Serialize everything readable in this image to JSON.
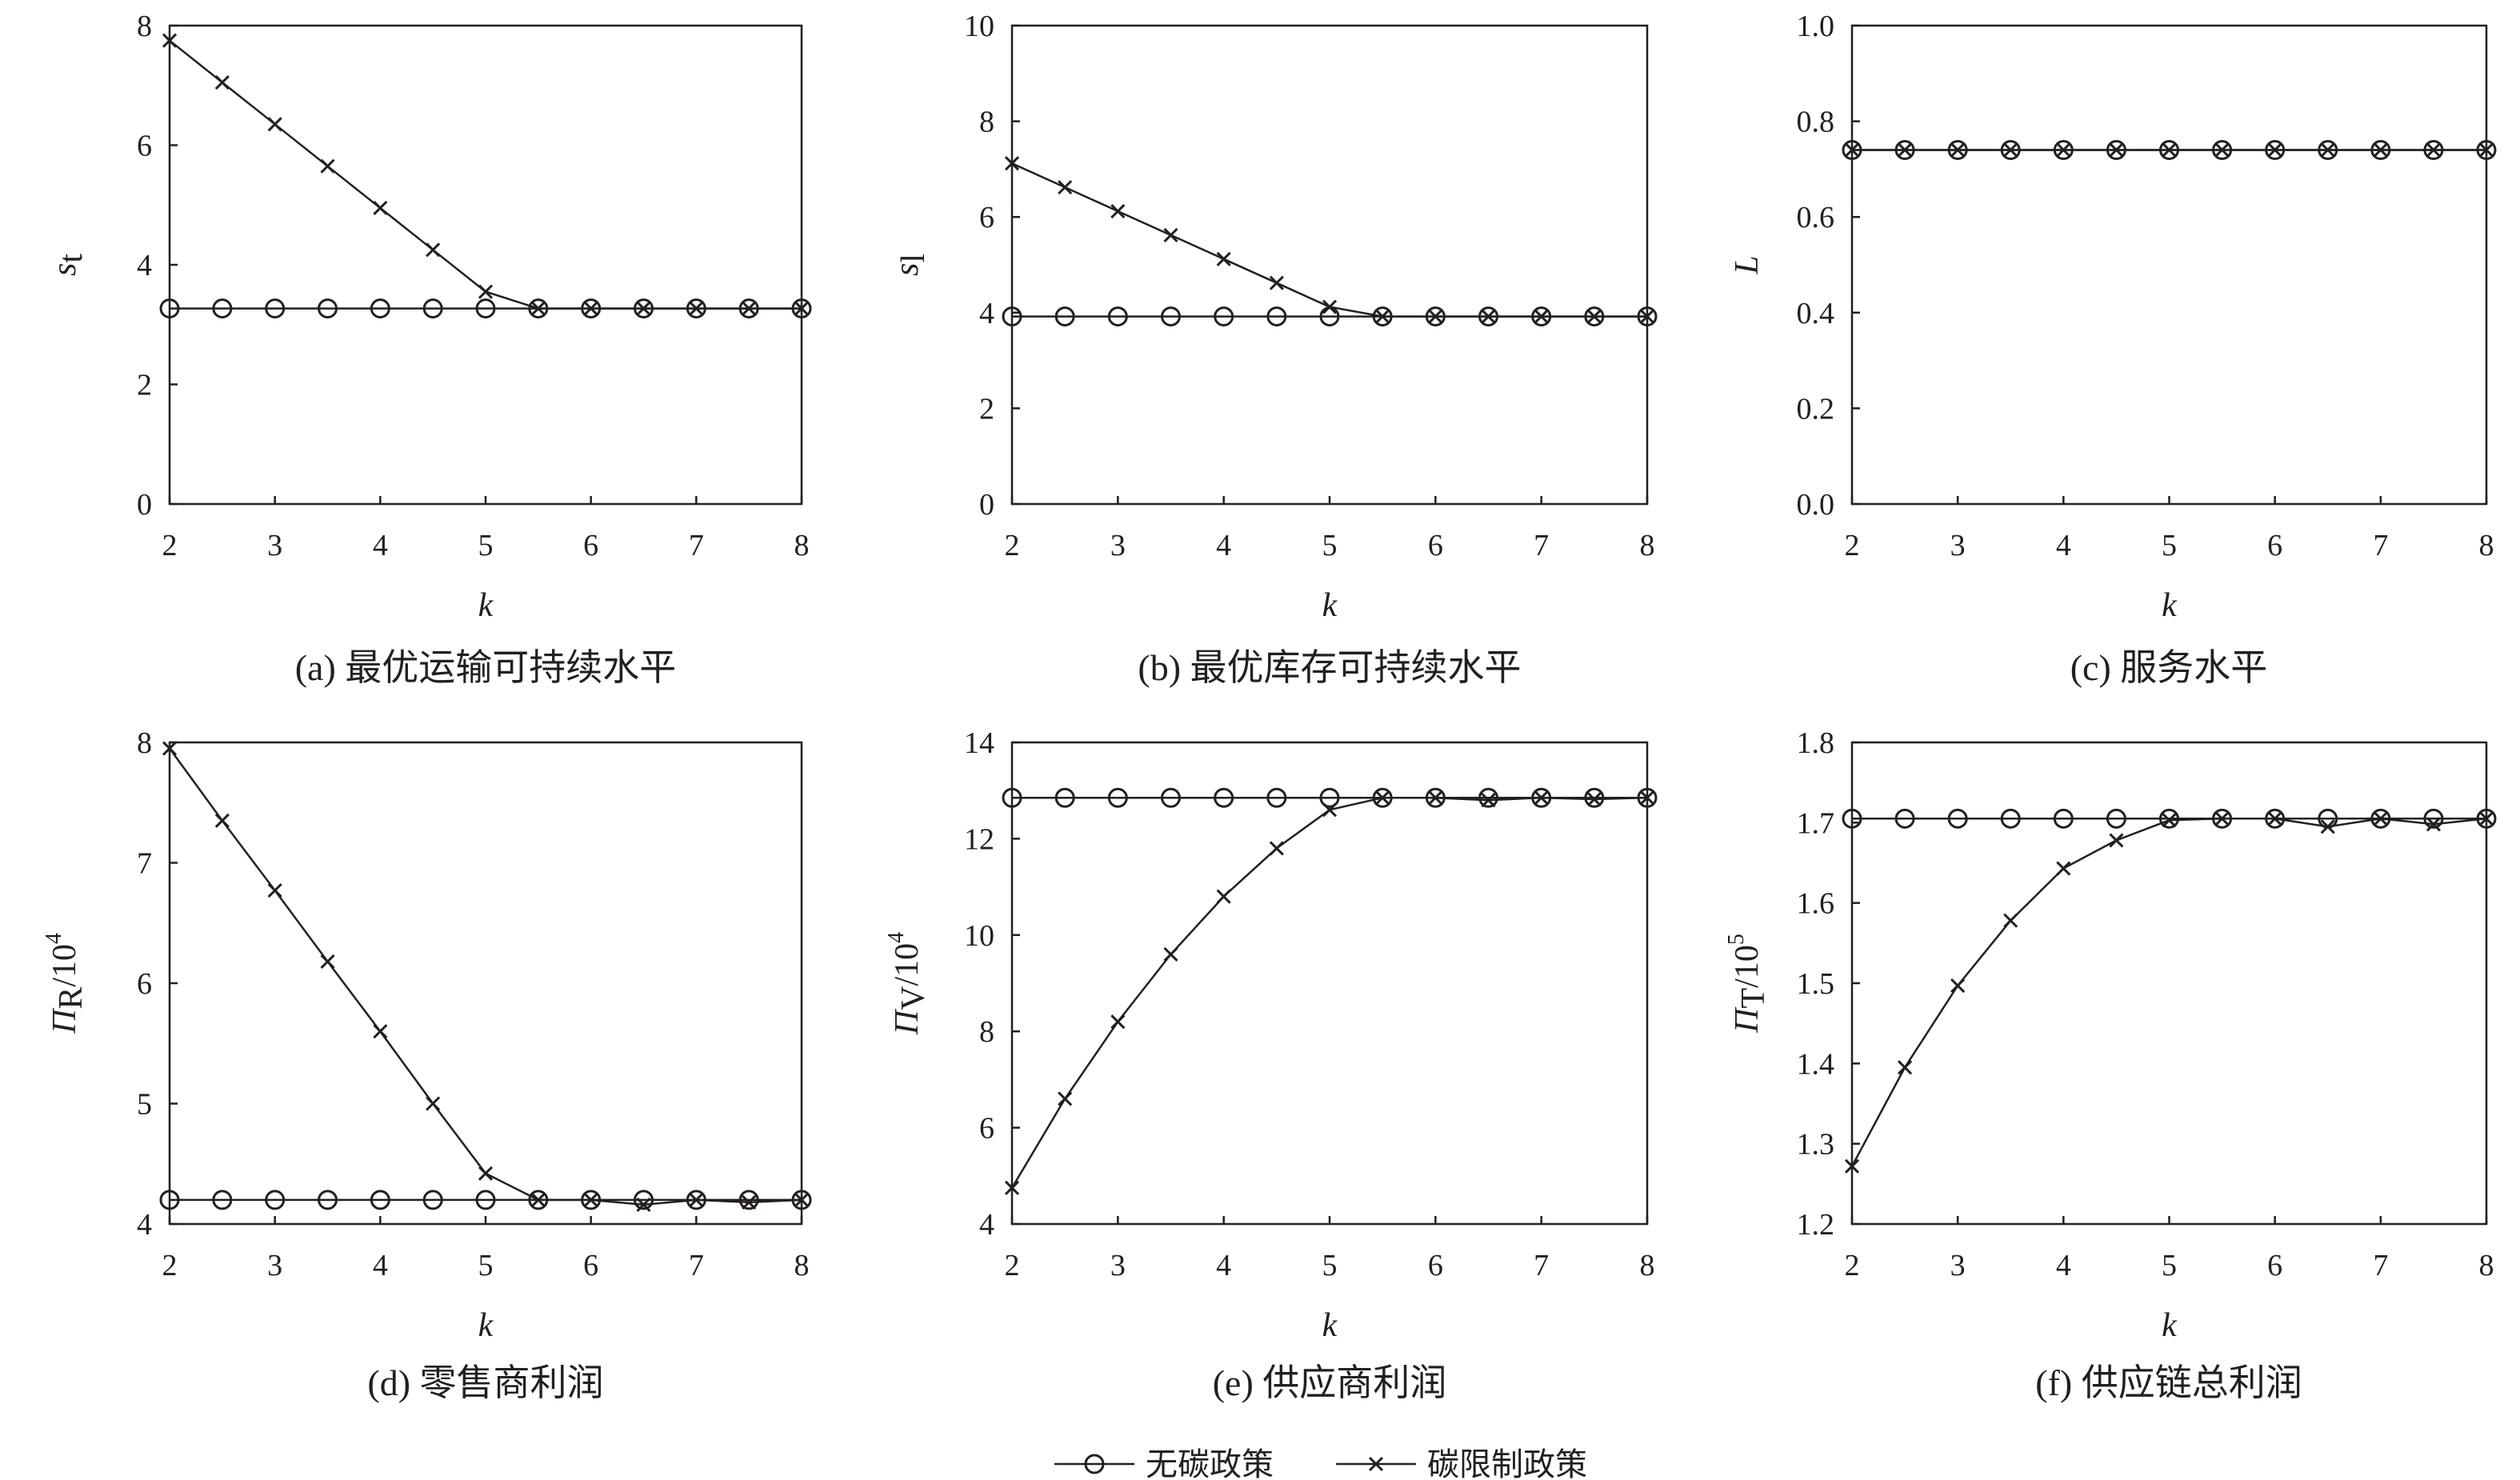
{
  "chart_data": [
    {
      "type": "line",
      "caption": "(a) 最优运输可持续水平",
      "xlabel": "k",
      "ylabel": {
        "main": "s",
        "sub": "t",
        "suffix": ""
      },
      "xlim": [
        2,
        8
      ],
      "ylim": [
        0,
        8
      ],
      "xticks": [
        2,
        3,
        4,
        5,
        6,
        7,
        8
      ],
      "yticks": [
        0,
        2,
        4,
        6,
        8
      ],
      "ytick_labels": [
        "0",
        "2",
        "4",
        "6",
        "8"
      ],
      "x": [
        2,
        2.5,
        3,
        3.5,
        4,
        4.5,
        5,
        5.5,
        6,
        6.5,
        7,
        7.5,
        8
      ],
      "series": [
        {
          "name": "无碳政策",
          "marker": "circle",
          "values": [
            3.27,
            3.27,
            3.27,
            3.27,
            3.27,
            3.27,
            3.27,
            3.27,
            3.27,
            3.27,
            3.27,
            3.27,
            3.27
          ]
        },
        {
          "name": "碳限制政策",
          "marker": "x",
          "values": [
            7.75,
            7.05,
            6.35,
            5.65,
            4.95,
            4.25,
            3.55,
            3.27,
            3.27,
            3.27,
            3.27,
            3.27,
            3.27
          ]
        }
      ]
    },
    {
      "type": "line",
      "caption": "(b) 最优库存可持续水平",
      "xlabel": "k",
      "ylabel": {
        "main": "s",
        "sub": "l",
        "suffix": ""
      },
      "xlim": [
        2,
        8
      ],
      "ylim": [
        0,
        10
      ],
      "xticks": [
        2,
        3,
        4,
        5,
        6,
        7,
        8
      ],
      "yticks": [
        0,
        2,
        4,
        6,
        8,
        10
      ],
      "ytick_labels": [
        "0",
        "2",
        "4",
        "6",
        "8",
        "10"
      ],
      "x": [
        2,
        2.5,
        3,
        3.5,
        4,
        4.5,
        5,
        5.5,
        6,
        6.5,
        7,
        7.5,
        8
      ],
      "series": [
        {
          "name": "无碳政策",
          "marker": "circle",
          "values": [
            3.92,
            3.92,
            3.92,
            3.92,
            3.92,
            3.92,
            3.92,
            3.92,
            3.92,
            3.92,
            3.92,
            3.92,
            3.92
          ]
        },
        {
          "name": "碳限制政策",
          "marker": "x",
          "values": [
            7.12,
            6.62,
            6.12,
            5.62,
            5.12,
            4.62,
            4.12,
            3.92,
            3.92,
            3.92,
            3.92,
            3.92,
            3.92
          ]
        }
      ]
    },
    {
      "type": "line",
      "caption": "(c) 服务水平",
      "xlabel": "k",
      "ylabel": {
        "main": "L",
        "sub": "",
        "suffix": ""
      },
      "xlim": [
        2,
        8
      ],
      "ylim": [
        0,
        1
      ],
      "xticks": [
        2,
        3,
        4,
        5,
        6,
        7,
        8
      ],
      "yticks": [
        0,
        0.2,
        0.4,
        0.6,
        0.8,
        1.0
      ],
      "ytick_labels": [
        "0.0",
        "0.2",
        "0.4",
        "0.6",
        "0.8",
        "1.0"
      ],
      "x": [
        2,
        2.5,
        3,
        3.5,
        4,
        4.5,
        5,
        5.5,
        6,
        6.5,
        7,
        7.5,
        8
      ],
      "series": [
        {
          "name": "无碳政策",
          "marker": "circle",
          "values": [
            0.74,
            0.74,
            0.74,
            0.74,
            0.74,
            0.74,
            0.74,
            0.74,
            0.74,
            0.74,
            0.74,
            0.74,
            0.74
          ]
        },
        {
          "name": "碳限制政策",
          "marker": "x",
          "values": [
            0.74,
            0.74,
            0.74,
            0.74,
            0.74,
            0.74,
            0.74,
            0.74,
            0.74,
            0.74,
            0.74,
            0.74,
            0.74
          ]
        }
      ]
    },
    {
      "type": "line",
      "caption": "(d) 零售商利润",
      "xlabel": "k",
      "ylabel": {
        "main": "Π",
        "sub": "R",
        "suffix": "/10",
        "sup": "4"
      },
      "xlim": [
        2,
        8
      ],
      "ylim": [
        4,
        8
      ],
      "xticks": [
        2,
        3,
        4,
        5,
        6,
        7,
        8
      ],
      "yticks": [
        4,
        5,
        6,
        7,
        8
      ],
      "ytick_labels": [
        "4",
        "5",
        "6",
        "7",
        "8"
      ],
      "x": [
        2,
        2.5,
        3,
        3.5,
        4,
        4.5,
        5,
        5.5,
        6,
        6.5,
        7,
        7.5,
        8
      ],
      "series": [
        {
          "name": "无碳政策",
          "marker": "circle",
          "values": [
            4.2,
            4.2,
            4.2,
            4.2,
            4.2,
            4.2,
            4.2,
            4.2,
            4.2,
            4.2,
            4.2,
            4.2,
            4.2
          ]
        },
        {
          "name": "碳限制政策",
          "marker": "x",
          "values": [
            7.95,
            7.35,
            6.77,
            6.18,
            5.6,
            5.0,
            4.42,
            4.2,
            4.2,
            4.16,
            4.2,
            4.18,
            4.2
          ]
        }
      ]
    },
    {
      "type": "line",
      "caption": "(e) 供应商利润",
      "xlabel": "k",
      "ylabel": {
        "main": "Π",
        "sub": "V",
        "suffix": "/10",
        "sup": "4"
      },
      "xlim": [
        2,
        8
      ],
      "ylim": [
        4,
        14
      ],
      "xticks": [
        2,
        3,
        4,
        5,
        6,
        7,
        8
      ],
      "yticks": [
        4,
        6,
        8,
        10,
        12,
        14
      ],
      "ytick_labels": [
        "4",
        "6",
        "8",
        "10",
        "12",
        "14"
      ],
      "x": [
        2,
        2.5,
        3,
        3.5,
        4,
        4.5,
        5,
        5.5,
        6,
        6.5,
        7,
        7.5,
        8
      ],
      "series": [
        {
          "name": "无碳政策",
          "marker": "circle",
          "values": [
            12.85,
            12.85,
            12.85,
            12.85,
            12.85,
            12.85,
            12.85,
            12.85,
            12.85,
            12.85,
            12.85,
            12.85,
            12.85
          ]
        },
        {
          "name": "碳限制政策",
          "marker": "x",
          "values": [
            4.75,
            6.6,
            8.2,
            9.6,
            10.8,
            11.8,
            12.6,
            12.85,
            12.85,
            12.8,
            12.85,
            12.82,
            12.85
          ]
        }
      ]
    },
    {
      "type": "line",
      "caption": "(f) 供应链总利润",
      "xlabel": "k",
      "ylabel": {
        "main": "Π",
        "sub": "T",
        "suffix": "/10",
        "sup": "5"
      },
      "xlim": [
        2,
        8
      ],
      "ylim": [
        1.2,
        1.8
      ],
      "xticks": [
        2,
        3,
        4,
        5,
        6,
        7,
        8
      ],
      "yticks": [
        1.2,
        1.3,
        1.4,
        1.5,
        1.6,
        1.7,
        1.8
      ],
      "ytick_labels": [
        "1.2",
        "1.3",
        "1.4",
        "1.5",
        "1.6",
        "1.7",
        "1.8"
      ],
      "x": [
        2,
        2.5,
        3,
        3.5,
        4,
        4.5,
        5,
        5.5,
        6,
        6.5,
        7,
        7.5,
        8
      ],
      "series": [
        {
          "name": "无碳政策",
          "marker": "circle",
          "values": [
            1.705,
            1.705,
            1.705,
            1.705,
            1.705,
            1.705,
            1.705,
            1.705,
            1.705,
            1.705,
            1.705,
            1.705,
            1.705
          ]
        },
        {
          "name": "碳限制政策",
          "marker": "x",
          "values": [
            1.272,
            1.395,
            1.497,
            1.578,
            1.643,
            1.678,
            1.703,
            1.705,
            1.705,
            1.695,
            1.705,
            1.698,
            1.705
          ]
        }
      ]
    }
  ],
  "legend": {
    "items": [
      {
        "label": "无碳政策",
        "marker": "circle"
      },
      {
        "label": "碳限制政策",
        "marker": "x"
      }
    ]
  }
}
